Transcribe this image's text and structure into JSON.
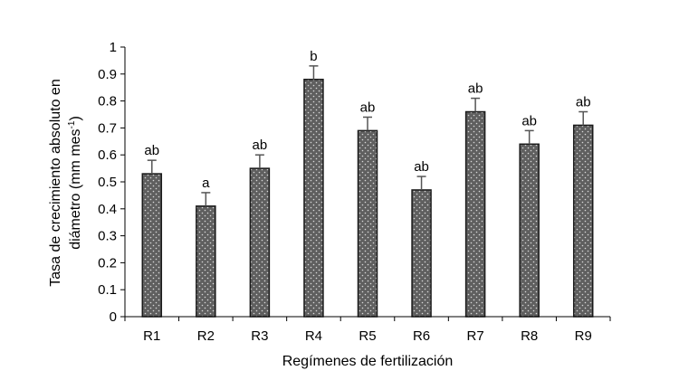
{
  "chart_data": {
    "type": "bar",
    "categories": [
      "R1",
      "R2",
      "R3",
      "R4",
      "R5",
      "R6",
      "R7",
      "R8",
      "R9"
    ],
    "series": [
      {
        "values": [
          0.53,
          0.41,
          0.55,
          0.88,
          0.69,
          0.47,
          0.76,
          0.64,
          0.71
        ],
        "error": [
          0.05,
          0.05,
          0.05,
          0.05,
          0.05,
          0.05,
          0.05,
          0.05,
          0.05
        ],
        "significance_letters": [
          "ab",
          "a",
          "ab",
          "b",
          "ab",
          "ab",
          "ab",
          "ab",
          "ab"
        ]
      }
    ],
    "xlabel": "Regímenes de fertilización",
    "ylabel_line1": "Tasa de crecimiento absoluto en",
    "ylabel_line2": "diámetro (mm mes",
    "ylabel_superscript": "-1",
    "ylabel_close": ")",
    "ylim": [
      0,
      1
    ],
    "yticks": [
      "0",
      "0.1",
      "0.2",
      "0.3",
      "0.4",
      "0.5",
      "0.6",
      "0.7",
      "0.8",
      "0.9",
      "1"
    ],
    "grid": false,
    "legend": "none",
    "colors": {
      "bar_fill": "#5f5f5f",
      "bar_dots": "#d9d9d9",
      "bar_stroke": "#1a1a1a",
      "error_bar": "#555555",
      "axis": "#000000"
    }
  }
}
